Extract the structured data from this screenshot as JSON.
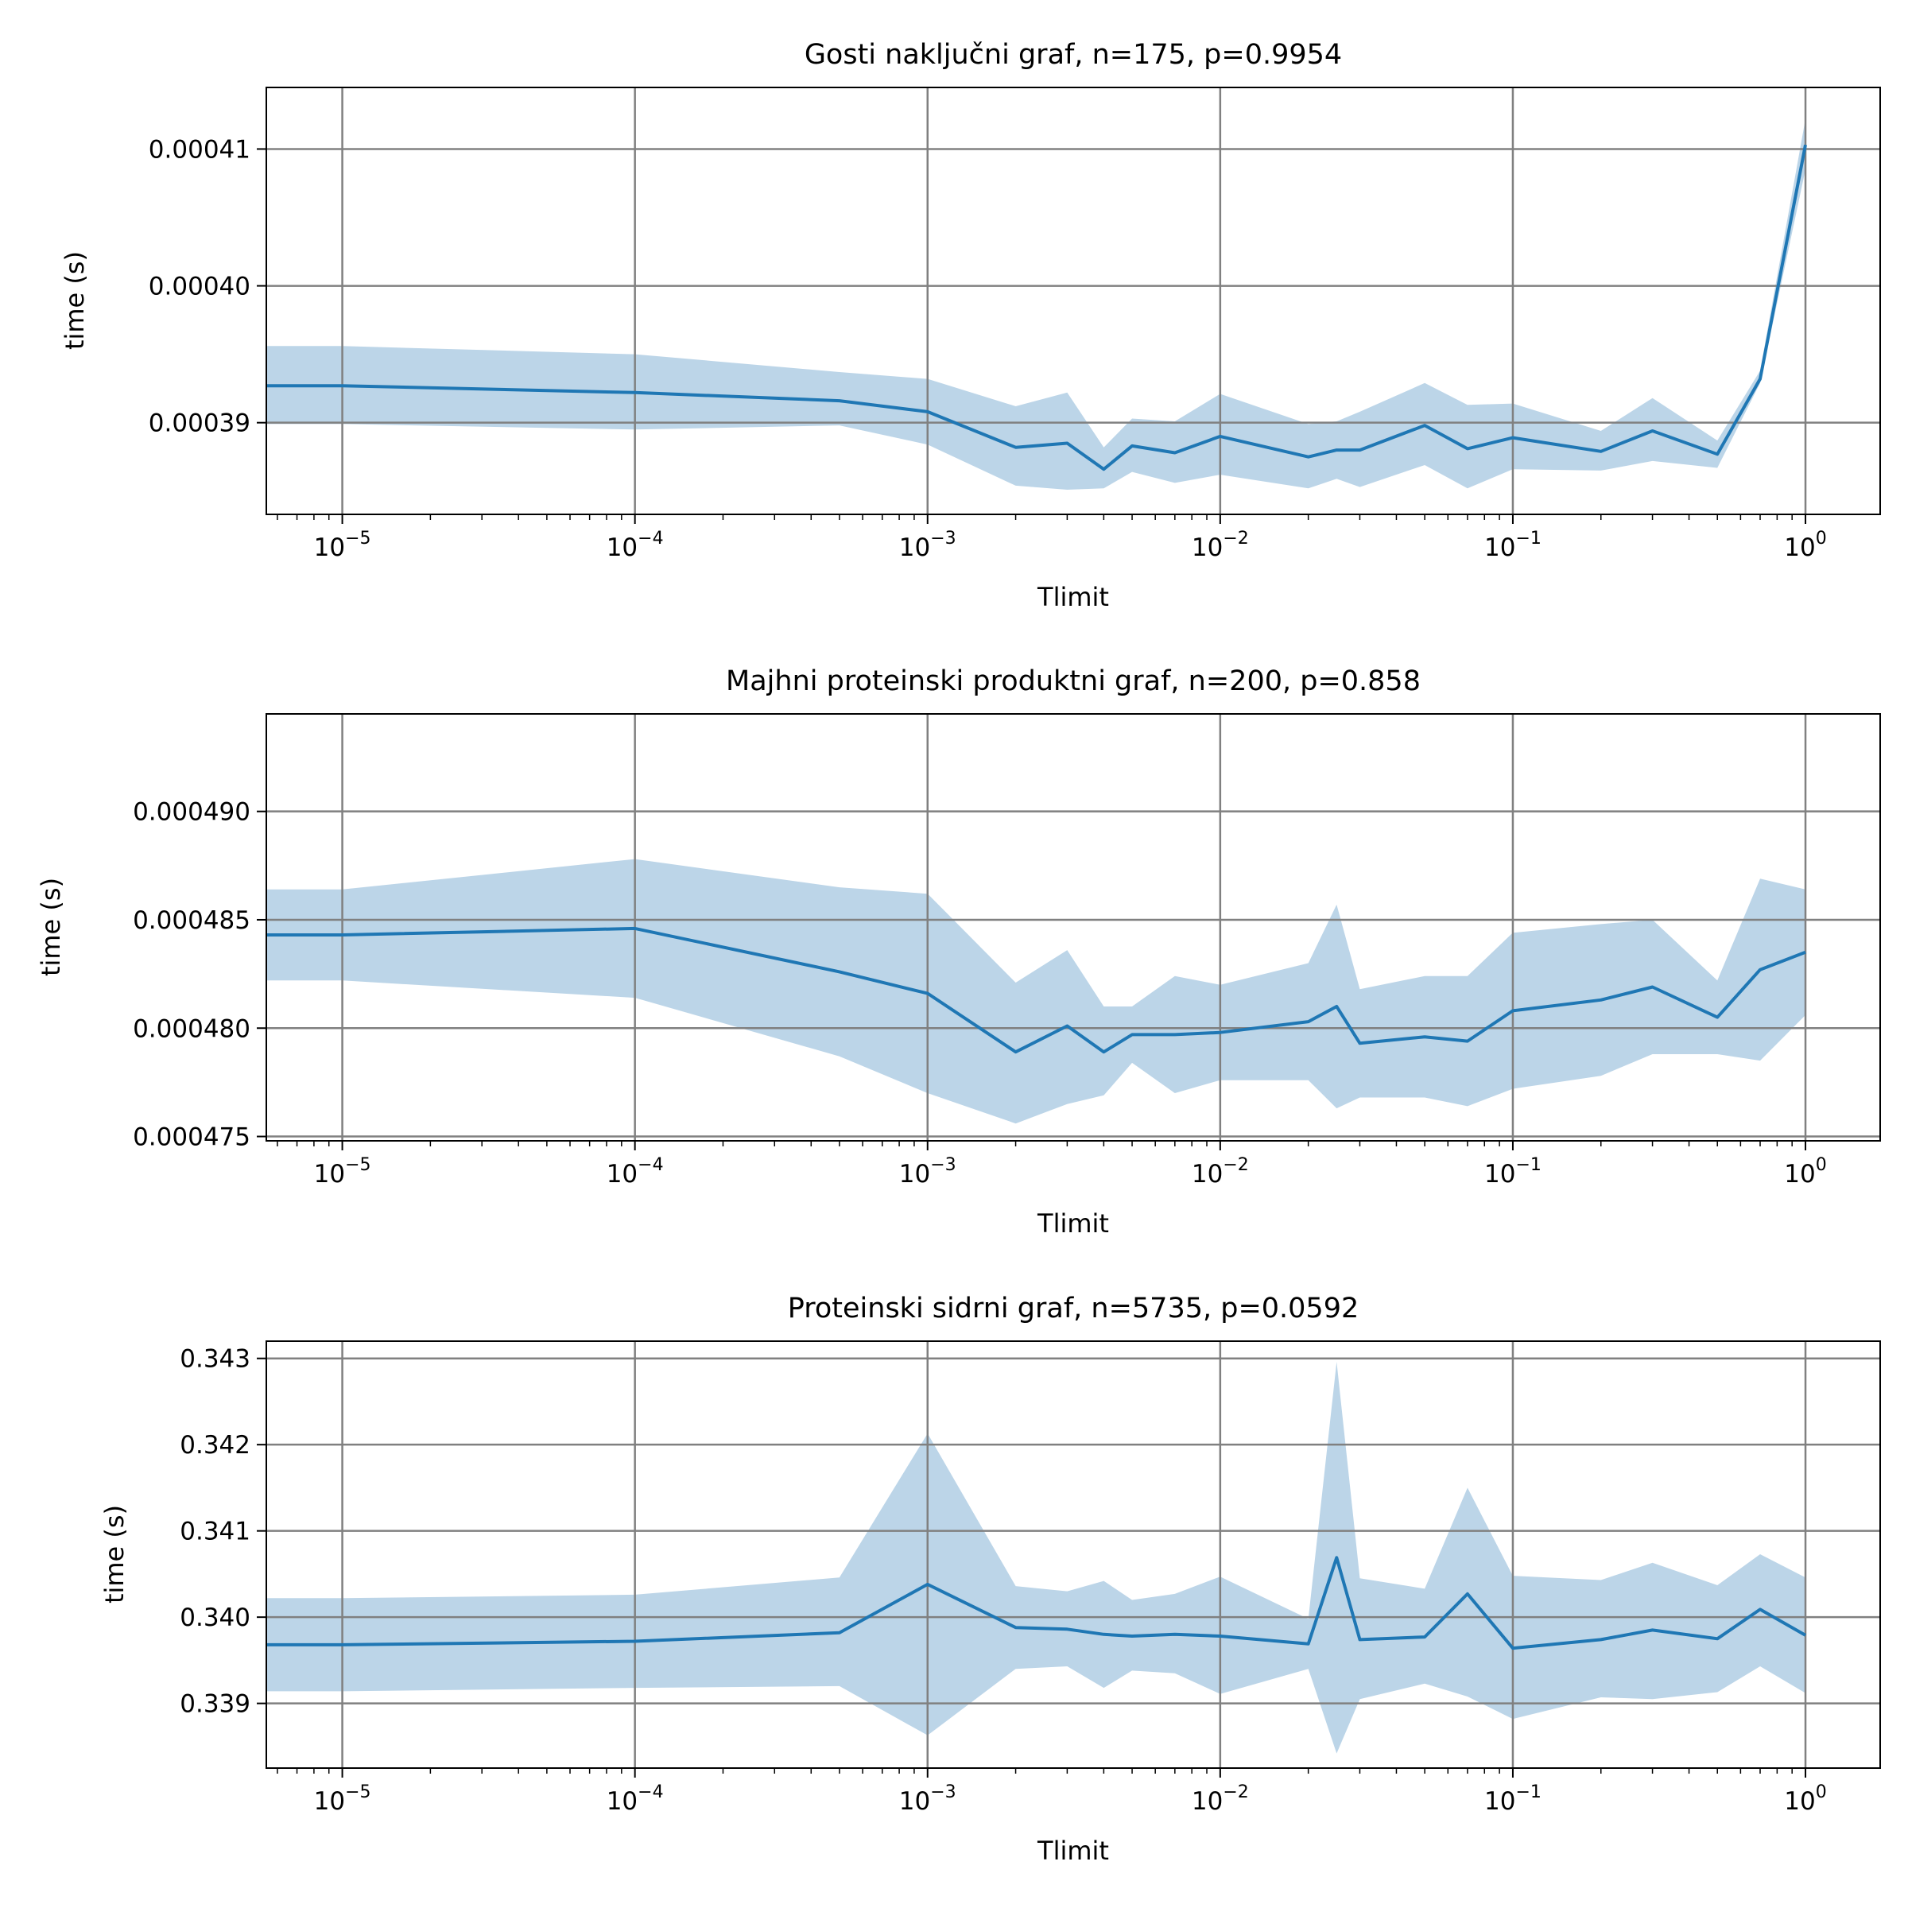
{
  "colors": {
    "line": "#1f77b4",
    "band": "#bcd5e8",
    "grid": "#808080",
    "axes": "#000000"
  },
  "chart_data": [
    {
      "type": "line",
      "title": "Gosti naključni graf, n=175, p=0.9954",
      "xlabel": "Tlimit",
      "ylabel": "time (s)",
      "xscale": "log",
      "xlim": [
        5.5e-06,
        1.8
      ],
      "ylim": [
        0.0003833,
        0.0004145
      ],
      "grid": true,
      "xticks": [
        {
          "value": 1e-05,
          "base": "10",
          "exp": "−5"
        },
        {
          "value": 0.0001,
          "base": "10",
          "exp": "−4"
        },
        {
          "value": 0.001,
          "base": "10",
          "exp": "−3"
        },
        {
          "value": 0.01,
          "base": "10",
          "exp": "−2"
        },
        {
          "value": 0.1,
          "base": "10",
          "exp": "−1"
        },
        {
          "value": 1,
          "base": "10",
          "exp": "0"
        }
      ],
      "yticks": [
        {
          "value": 0.00039,
          "label": "0.00039"
        },
        {
          "value": 0.0004,
          "label": "0.00040"
        },
        {
          "value": 0.00041,
          "label": "0.00041"
        }
      ],
      "x": [
        5.5e-06,
        1e-05,
        0.0001,
        0.0005,
        0.001,
        0.002,
        0.003,
        0.004,
        0.005,
        0.007,
        0.01,
        0.02,
        0.025,
        0.03,
        0.05,
        0.07,
        0.1,
        0.2,
        0.3,
        0.5,
        0.7,
        1
      ],
      "y": [
        0.0003927,
        0.0003927,
        0.0003922,
        0.0003916,
        0.0003908,
        0.0003882,
        0.0003885,
        0.0003866,
        0.0003883,
        0.0003878,
        0.000389,
        0.0003875,
        0.000388,
        0.000388,
        0.0003898,
        0.0003881,
        0.0003889,
        0.0003879,
        0.0003894,
        0.0003877,
        0.0003932,
        0.0004103
      ],
      "lower": [
        0.0003899,
        0.0003899,
        0.0003895,
        0.0003898,
        0.0003884,
        0.0003854,
        0.0003851,
        0.0003852,
        0.0003864,
        0.0003856,
        0.0003862,
        0.0003852,
        0.0003859,
        0.0003853,
        0.0003869,
        0.0003852,
        0.0003866,
        0.0003865,
        0.0003872,
        0.0003867,
        0.0003929,
        0.0004085
      ],
      "upper": [
        0.0003956,
        0.0003956,
        0.000395,
        0.0003937,
        0.0003932,
        0.0003912,
        0.0003922,
        0.0003882,
        0.0003903,
        0.0003901,
        0.0003921,
        0.0003899,
        0.0003901,
        0.0003908,
        0.0003929,
        0.0003913,
        0.0003914,
        0.0003894,
        0.0003918,
        0.0003887,
        0.0003938,
        0.0004122
      ]
    },
    {
      "type": "line",
      "title": "Majhni proteinski produktni graf, n=200, p=0.858",
      "xlabel": "Tlimit",
      "ylabel": "time (s)",
      "xscale": "log",
      "xlim": [
        5.5e-06,
        1.8
      ],
      "ylim": [
        0.0004748,
        0.0004945
      ],
      "grid": true,
      "xticks": [
        {
          "value": 1e-05,
          "base": "10",
          "exp": "−5"
        },
        {
          "value": 0.0001,
          "base": "10",
          "exp": "−4"
        },
        {
          "value": 0.001,
          "base": "10",
          "exp": "−3"
        },
        {
          "value": 0.01,
          "base": "10",
          "exp": "−2"
        },
        {
          "value": 0.1,
          "base": "10",
          "exp": "−1"
        },
        {
          "value": 1,
          "base": "10",
          "exp": "0"
        }
      ],
      "yticks": [
        {
          "value": 0.000475,
          "label": "0.000475"
        },
        {
          "value": 0.00048,
          "label": "0.000480"
        },
        {
          "value": 0.000485,
          "label": "0.000485"
        },
        {
          "value": 0.00049,
          "label": "0.000490"
        }
      ],
      "x": [
        5.5e-06,
        1e-05,
        0.0001,
        0.0005,
        0.001,
        0.002,
        0.003,
        0.004,
        0.005,
        0.007,
        0.01,
        0.02,
        0.025,
        0.03,
        0.05,
        0.07,
        0.1,
        0.2,
        0.3,
        0.5,
        0.7,
        1
      ],
      "y": [
        0.0004843,
        0.0004843,
        0.0004846,
        0.0004826,
        0.0004816,
        0.0004789,
        0.0004801,
        0.0004789,
        0.0004797,
        0.0004797,
        0.0004798,
        0.0004803,
        0.000481,
        0.0004793,
        0.0004796,
        0.0004794,
        0.0004808,
        0.0004813,
        0.0004819,
        0.0004805,
        0.0004827,
        0.0004835
      ],
      "lower": [
        0.0004822,
        0.0004822,
        0.0004814,
        0.0004787,
        0.000477,
        0.0004756,
        0.0004765,
        0.0004769,
        0.0004784,
        0.000477,
        0.0004776,
        0.0004776,
        0.0004763,
        0.0004768,
        0.0004768,
        0.0004764,
        0.0004772,
        0.0004778,
        0.0004788,
        0.0004788,
        0.0004785,
        0.0004806
      ],
      "upper": [
        0.0004864,
        0.0004864,
        0.0004878,
        0.0004865,
        0.0004862,
        0.0004821,
        0.0004836,
        0.000481,
        0.000481,
        0.0004824,
        0.000482,
        0.000483,
        0.0004857,
        0.0004818,
        0.0004824,
        0.0004824,
        0.0004844,
        0.0004848,
        0.000485,
        0.0004822,
        0.0004869,
        0.0004864
      ]
    },
    {
      "type": "line",
      "title": "Proteinski sidrni graf, n=5735, p=0.0592",
      "xlabel": "Tlimit",
      "ylabel": "time (s)",
      "xscale": "log",
      "xlim": [
        5.5e-06,
        1.8
      ],
      "ylim": [
        0.33825,
        0.3432
      ],
      "grid": true,
      "xticks": [
        {
          "value": 1e-05,
          "base": "10",
          "exp": "−5"
        },
        {
          "value": 0.0001,
          "base": "10",
          "exp": "−4"
        },
        {
          "value": 0.001,
          "base": "10",
          "exp": "−3"
        },
        {
          "value": 0.01,
          "base": "10",
          "exp": "−2"
        },
        {
          "value": 0.1,
          "base": "10",
          "exp": "−1"
        },
        {
          "value": 1,
          "base": "10",
          "exp": "0"
        }
      ],
      "yticks": [
        {
          "value": 0.339,
          "label": "0.339"
        },
        {
          "value": 0.34,
          "label": "0.340"
        },
        {
          "value": 0.341,
          "label": "0.341"
        },
        {
          "value": 0.342,
          "label": "0.342"
        },
        {
          "value": 0.343,
          "label": "0.343"
        }
      ],
      "x": [
        5.5e-06,
        1e-05,
        0.0001,
        0.0005,
        0.001,
        0.002,
        0.003,
        0.004,
        0.005,
        0.007,
        0.01,
        0.02,
        0.025,
        0.03,
        0.05,
        0.07,
        0.1,
        0.2,
        0.3,
        0.5,
        0.7,
        1
      ],
      "y": [
        0.33968,
        0.33968,
        0.33972,
        0.33982,
        0.34038,
        0.33988,
        0.33986,
        0.3398,
        0.33978,
        0.3398,
        0.33978,
        0.33969,
        0.34069,
        0.33974,
        0.33977,
        0.34027,
        0.33964,
        0.33974,
        0.33985,
        0.33975,
        0.34009,
        0.33979
      ],
      "lower": [
        0.33914,
        0.33914,
        0.33918,
        0.3392,
        0.33863,
        0.3394,
        0.33943,
        0.33918,
        0.33938,
        0.33935,
        0.33911,
        0.3394,
        0.33842,
        0.33905,
        0.33923,
        0.33908,
        0.33882,
        0.33907,
        0.33905,
        0.33913,
        0.33943,
        0.33912
      ],
      "upper": [
        0.34022,
        0.34022,
        0.34026,
        0.34046,
        0.34213,
        0.34036,
        0.3403,
        0.34042,
        0.3402,
        0.34027,
        0.34047,
        0.33998,
        0.34296,
        0.34045,
        0.34033,
        0.3415,
        0.34048,
        0.34043,
        0.34063,
        0.34037,
        0.34073,
        0.34046
      ]
    }
  ]
}
